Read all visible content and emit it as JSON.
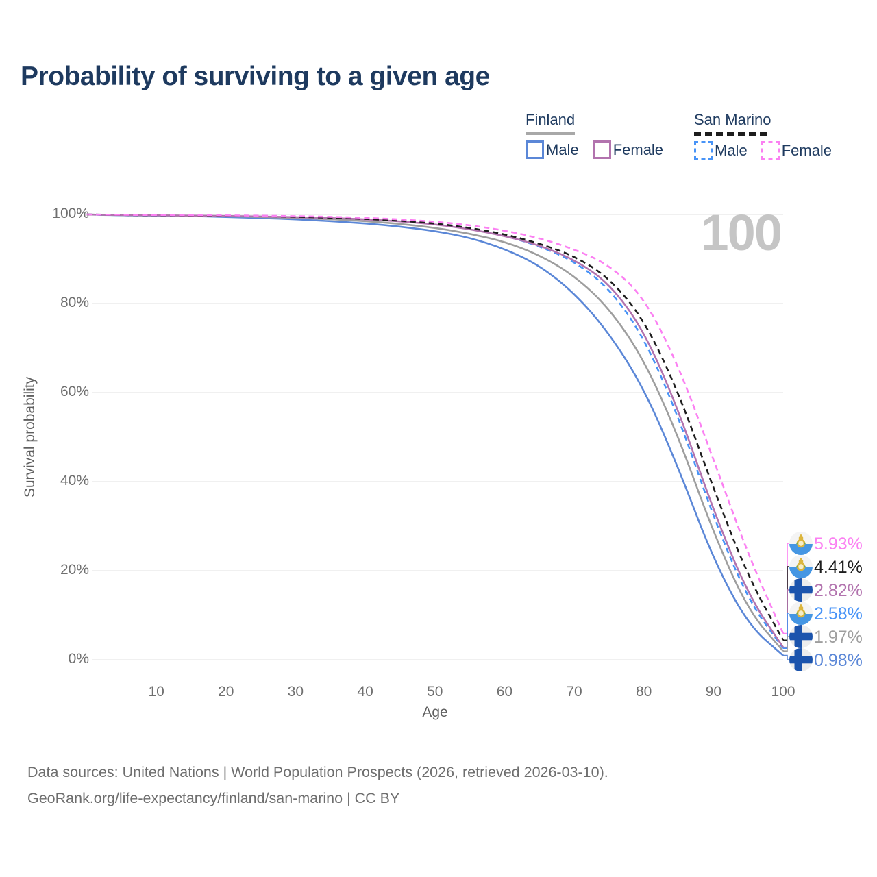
{
  "title": "Probability of surviving to a given age",
  "hover_age": "100",
  "legend": {
    "groups": [
      {
        "id": "finland",
        "title": "Finland",
        "underline_style": "solid",
        "underline_color": "#a8a8a8",
        "items": [
          {
            "label": "Male",
            "color": "#5b87d7",
            "dashed": false
          },
          {
            "label": "Female",
            "color": "#b273ae",
            "dashed": false
          }
        ]
      },
      {
        "id": "sanmarino",
        "title": "San Marino",
        "underline_style": "dashed",
        "underline_color": "#1d1d1d",
        "items": [
          {
            "label": "Male",
            "color": "#4793f7",
            "dashed": true
          },
          {
            "label": "Female",
            "color": "#fb80f2",
            "dashed": true
          }
        ]
      }
    ]
  },
  "footer": {
    "line1": "Data sources: United Nations | World Population Prospects (2026, retrieved 2026-03-10).",
    "line2": "GeoRank.org/life-expectancy/finland/san-marino | CC BY"
  },
  "chart_data": {
    "type": "line",
    "title": "Probability of surviving to a given age",
    "xlabel": "Age",
    "ylabel": "Survival probability",
    "xlim": [
      0,
      100
    ],
    "ylim": [
      0,
      100
    ],
    "grid": "horizontal",
    "legend_position": "top-right",
    "hover_age": "100",
    "x_ticks": [
      {
        "value": 10,
        "label": "10"
      },
      {
        "value": 20,
        "label": "20"
      },
      {
        "value": 30,
        "label": "30"
      },
      {
        "value": 40,
        "label": "40"
      },
      {
        "value": 50,
        "label": "50"
      },
      {
        "value": 60,
        "label": "60"
      },
      {
        "value": 70,
        "label": "70"
      },
      {
        "value": 80,
        "label": "80"
      },
      {
        "value": 90,
        "label": "90"
      },
      {
        "value": 100,
        "label": "100"
      }
    ],
    "y_ticks": [
      {
        "value": 100,
        "label": "100%"
      },
      {
        "value": 80,
        "label": "80%"
      },
      {
        "value": 60,
        "label": "60%"
      },
      {
        "value": 40,
        "label": "40%"
      },
      {
        "value": 20,
        "label": "20%"
      },
      {
        "value": 0,
        "label": "0%"
      }
    ],
    "ages": [
      0,
      5,
      10,
      15,
      20,
      25,
      30,
      35,
      40,
      45,
      50,
      55,
      60,
      65,
      70,
      75,
      80,
      85,
      90,
      95,
      100
    ],
    "series": [
      {
        "name": "San Marino Female",
        "color": "#fb80f2",
        "dashed": true,
        "flag": "sm",
        "end_label": "5.93%",
        "end_value": 5.93,
        "values": [
          100,
          99.9,
          99.87,
          99.84,
          99.8,
          99.73,
          99.62,
          99.47,
          99.25,
          98.9,
          98.4,
          97.6,
          96.4,
          94.7,
          92.2,
          88.7,
          81.5,
          66,
          45,
          23.5,
          5.93
        ]
      },
      {
        "name": "San Marino (both sexes)",
        "color": "#1d1d1d",
        "dashed": true,
        "flag": "sm",
        "end_label": "4.41%",
        "end_value": 4.41,
        "values": [
          100,
          99.88,
          99.84,
          99.8,
          99.73,
          99.63,
          99.5,
          99.3,
          99.0,
          98.6,
          98.0,
          97.0,
          95.6,
          93.5,
          90.7,
          85.8,
          76.5,
          60,
          38.5,
          18.5,
          4.41
        ]
      },
      {
        "name": "Finland Female",
        "color": "#b273ae",
        "dashed": false,
        "flag": "fi",
        "end_label": "2.82%",
        "end_value": 2.82,
        "values": [
          100,
          99.85,
          99.8,
          99.75,
          99.67,
          99.56,
          99.42,
          99.22,
          98.9,
          98.45,
          97.8,
          96.7,
          95.2,
          93.1,
          89.9,
          84.6,
          74,
          56,
          33.5,
          14.5,
          2.82
        ]
      },
      {
        "name": "San Marino Male",
        "color": "#4793f7",
        "dashed": true,
        "flag": "sm",
        "end_label": "2.58%",
        "end_value": 2.58,
        "values": [
          100,
          99.87,
          99.83,
          99.78,
          99.7,
          99.6,
          99.46,
          99.26,
          98.95,
          98.5,
          97.9,
          96.8,
          95.3,
          92.9,
          89.5,
          83.5,
          72.5,
          54.5,
          32,
          13.3,
          2.58
        ]
      },
      {
        "name": "Finland (both sexes)",
        "color": "#9e9e9e",
        "dashed": false,
        "flag": "fi",
        "end_label": "1.97%",
        "end_value": 1.97,
        "values": [
          100,
          99.82,
          99.78,
          99.7,
          99.6,
          99.45,
          99.25,
          98.95,
          98.5,
          97.9,
          97.0,
          95.7,
          93.9,
          90.9,
          86.3,
          79.0,
          67.5,
          50,
          28.5,
          11,
          1.97
        ]
      },
      {
        "name": "Finland Male",
        "color": "#5b87d7",
        "dashed": false,
        "flag": "fi",
        "end_label": "0.98%",
        "end_value": 0.98,
        "values": [
          100,
          99.8,
          99.74,
          99.64,
          99.45,
          99.2,
          98.9,
          98.5,
          98.0,
          97.3,
          96.3,
          94.8,
          92.3,
          88.6,
          82.4,
          73.4,
          61,
          43,
          22.5,
          7.8,
          0.98
        ]
      }
    ]
  }
}
